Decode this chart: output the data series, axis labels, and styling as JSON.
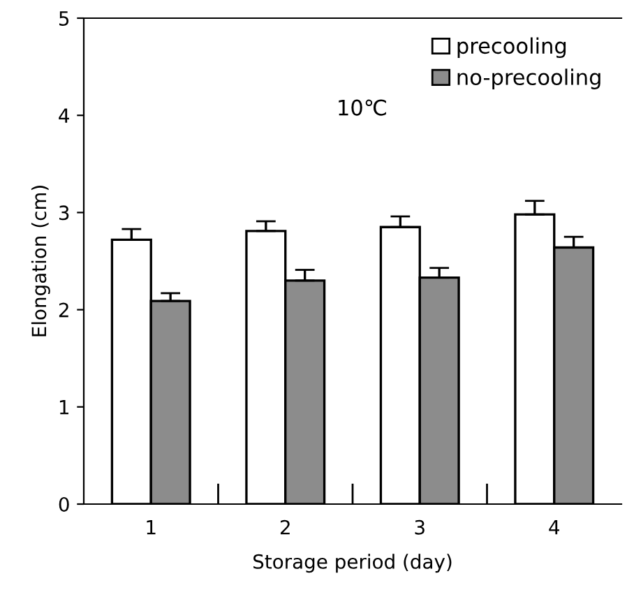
{
  "chart_data": {
    "type": "bar",
    "xlabel": "Storage period (day)",
    "ylabel": "Elongation (cm)",
    "categories": [
      "1",
      "2",
      "3",
      "4"
    ],
    "series": [
      {
        "name": "precooling",
        "color": "#ffffff",
        "values": [
          2.72,
          2.81,
          2.85,
          2.98
        ],
        "errors": [
          [
            2.72,
            2.83
          ],
          [
            2.81,
            2.91
          ],
          [
            2.85,
            2.96
          ],
          [
            2.98,
            3.12
          ]
        ]
      },
      {
        "name": "no-precooling",
        "color": "#8c8c8c",
        "values": [
          2.09,
          2.3,
          2.33,
          2.64
        ],
        "errors": [
          [
            2.09,
            2.17
          ],
          [
            2.3,
            2.41
          ],
          [
            2.33,
            2.43
          ],
          [
            2.64,
            2.75
          ]
        ]
      }
    ],
    "ylim": [
      0,
      5
    ],
    "yticks": [
      0,
      1,
      2,
      3,
      4,
      5
    ],
    "annotations": [
      "10℃"
    ],
    "legend": "top right",
    "grid": false
  }
}
